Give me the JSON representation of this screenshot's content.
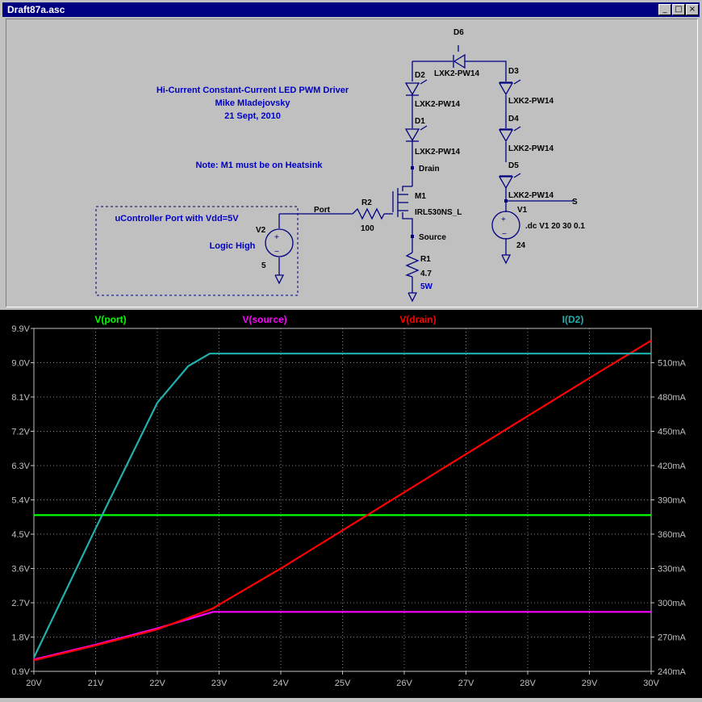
{
  "window": {
    "title": "Draft87a.asc",
    "controls": {
      "minimize": "_",
      "maximize": "□",
      "close": "×"
    }
  },
  "schematic": {
    "notes": [
      "Hi-Current Constant-Current LED PWM Driver",
      "Mike Mladejovsky",
      "21 Sept, 2010"
    ],
    "note_heatsink": "Note: M1 must be on Heatsink",
    "ucontroller_note": "uController Port with Vdd=5V",
    "logic_high": "Logic High",
    "components": {
      "D6": {
        "name": "D6",
        "value": "LXK2-PW14"
      },
      "D2": {
        "name": "D2",
        "value": "LXK2-PW14"
      },
      "D1": {
        "name": "D1",
        "value": "LXK2-PW14"
      },
      "D3": {
        "name": "D3",
        "value": "LXK2-PW14"
      },
      "D4": {
        "name": "D4",
        "value": "LXK2-PW14"
      },
      "D5": {
        "name": "D5",
        "value": "LXK2-PW14"
      },
      "M1": {
        "name": "M1",
        "value": "IRL530NS_L"
      },
      "R2": {
        "name": "R2",
        "value": "100"
      },
      "R1": {
        "name": "R1",
        "value": "4.7",
        "extra": "5W"
      },
      "V2": {
        "name": "V2",
        "value": "5"
      },
      "V1": {
        "name": "V1",
        "value": "24",
        "directive": ".dc V1 20 30 0.1"
      }
    },
    "net_labels": {
      "drain": "Drain",
      "source": "Source",
      "port": "Port",
      "s": "S"
    }
  },
  "chart_data": {
    "type": "line",
    "xlabel": "",
    "x_ticks": [
      "20V",
      "21V",
      "22V",
      "23V",
      "24V",
      "25V",
      "26V",
      "27V",
      "28V",
      "29V",
      "30V"
    ],
    "x_range": [
      20,
      30
    ],
    "y_left_ticks": [
      "0.9V",
      "1.8V",
      "2.7V",
      "3.6V",
      "4.5V",
      "5.4V",
      "6.3V",
      "7.2V",
      "8.1V",
      "9.0V",
      "9.9V"
    ],
    "y_left_range": [
      0.9,
      9.9
    ],
    "y_right_ticks": [
      "240mA",
      "270mA",
      "300mA",
      "330mA",
      "360mA",
      "390mA",
      "420mA",
      "450mA",
      "480mA",
      "510mA"
    ],
    "y_right_range": [
      240,
      540
    ],
    "grid": true,
    "series": [
      {
        "name": "V(port)",
        "axis": "left",
        "color": "#00ff00",
        "x": [
          20,
          30
        ],
        "values": [
          5.0,
          5.0
        ]
      },
      {
        "name": "V(source)",
        "axis": "left",
        "color": "#ff00ff",
        "x": [
          20,
          21,
          22,
          22.9,
          23,
          30
        ],
        "values": [
          1.21,
          1.6,
          2.03,
          2.46,
          2.46,
          2.46
        ]
      },
      {
        "name": "V(drain)",
        "axis": "left",
        "color": "#ff0000",
        "x": [
          20,
          21,
          22,
          22.9,
          23,
          24,
          25,
          26,
          27,
          28,
          29,
          30
        ],
        "values": [
          1.19,
          1.58,
          2.0,
          2.55,
          2.65,
          3.6,
          4.6,
          5.6,
          6.6,
          7.6,
          8.6,
          9.58
        ]
      },
      {
        "name": "I(D2)",
        "axis": "right",
        "color": "#20b0b0",
        "x": [
          20,
          21,
          22,
          22.5,
          22.85,
          23,
          30
        ],
        "values": [
          252,
          365,
          475,
          507,
          518,
          518,
          518
        ]
      }
    ]
  }
}
